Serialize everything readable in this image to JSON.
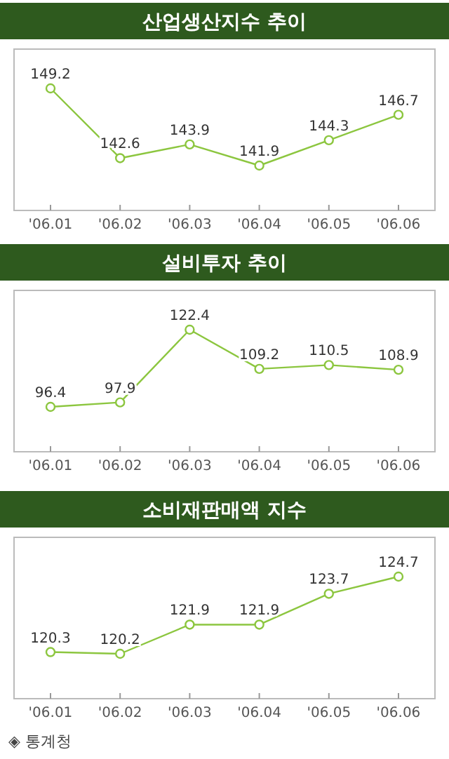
{
  "chart_data": [
    {
      "type": "line",
      "title": "산업생산지수 추이",
      "categories": [
        "'06.01",
        "'06.02",
        "'06.03",
        "'06.04",
        "'06.05",
        "'06.06"
      ],
      "values": [
        149.2,
        142.6,
        143.9,
        141.9,
        144.3,
        146.7
      ],
      "color": "#8cc63f",
      "marker": "circle",
      "data_labels": true
    },
    {
      "type": "line",
      "title": "설비투자 추이",
      "categories": [
        "'06.01",
        "'06.02",
        "'06.03",
        "'06.04",
        "'06.05",
        "'06.06"
      ],
      "values": [
        96.4,
        97.9,
        122.4,
        109.2,
        110.5,
        108.9
      ],
      "color": "#8cc63f",
      "marker": "circle",
      "data_labels": true
    },
    {
      "type": "line",
      "title": "소비재판매액 지수",
      "categories": [
        "'06.01",
        "'06.02",
        "'06.03",
        "'06.04",
        "'06.05",
        "'06.06"
      ],
      "values": [
        120.3,
        120.2,
        121.9,
        121.9,
        123.7,
        124.7
      ],
      "color": "#8cc63f",
      "marker": "circle",
      "data_labels": true,
      "annotations": [
        "◈ 통계청"
      ]
    }
  ]
}
